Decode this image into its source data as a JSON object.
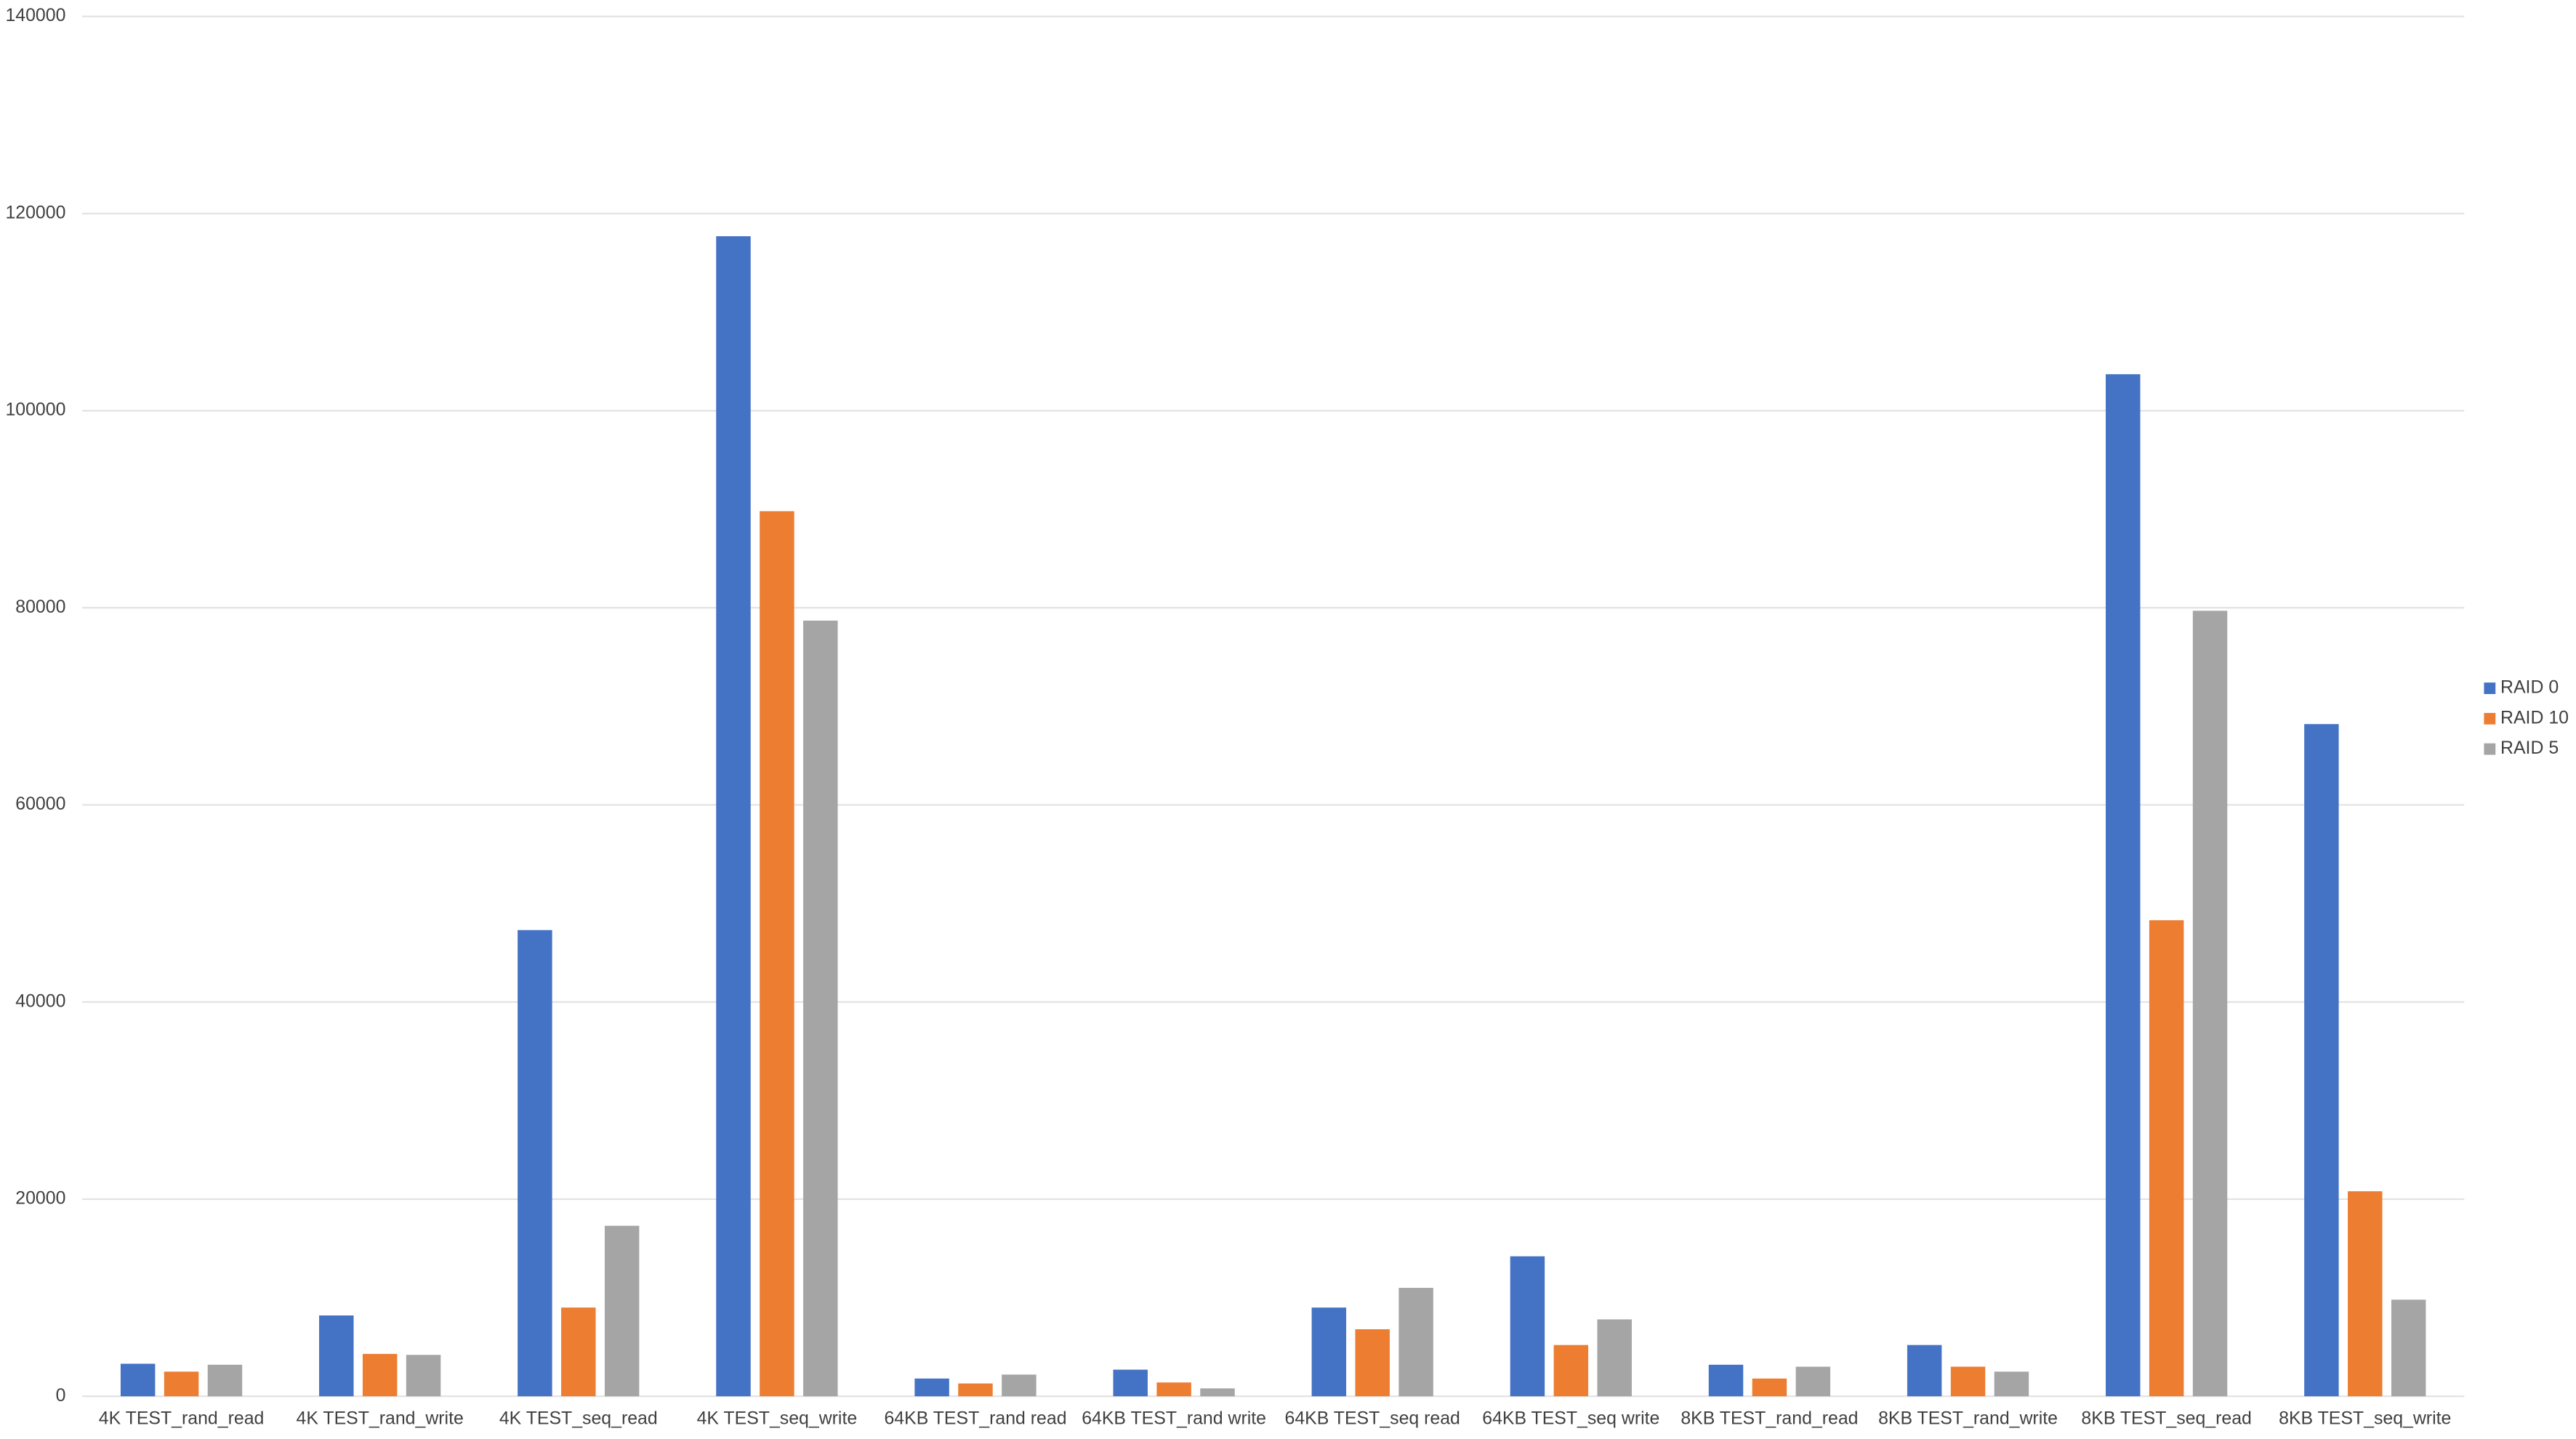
{
  "chart_data": {
    "type": "bar",
    "categories": [
      "4K TEST_rand_read",
      "4K TEST_rand_write",
      "4K TEST_seq_read",
      "4K TEST_seq_write",
      "64KB TEST_rand read",
      "64KB TEST_rand write",
      "64KB TEST_seq read",
      "64KB TEST_seq write",
      "8KB TEST_rand_read",
      "8KB TEST_rand_write",
      "8KB TEST_seq_read",
      "8KB TEST_seq_write"
    ],
    "series": [
      {
        "name": "RAID 0",
        "color": "#4472c4",
        "values": [
          3300,
          8200,
          47300,
          117700,
          1800,
          2700,
          9000,
          14200,
          3200,
          5200,
          103700,
          68200
        ]
      },
      {
        "name": "RAID 10",
        "color": "#ed7d31",
        "values": [
          2500,
          4300,
          9000,
          89800,
          1300,
          1400,
          6800,
          5200,
          1800,
          3000,
          48300,
          20800
        ]
      },
      {
        "name": "RAID 5",
        "color": "#a5a5a5",
        "values": [
          3200,
          4200,
          17300,
          78700,
          2200,
          800,
          11000,
          7800,
          3000,
          2500,
          79700,
          9800
        ]
      }
    ],
    "ylim": [
      0,
      140000
    ],
    "yticks": [
      0,
      20000,
      40000,
      60000,
      80000,
      100000,
      120000,
      140000
    ],
    "grid": true,
    "legend": "right"
  }
}
